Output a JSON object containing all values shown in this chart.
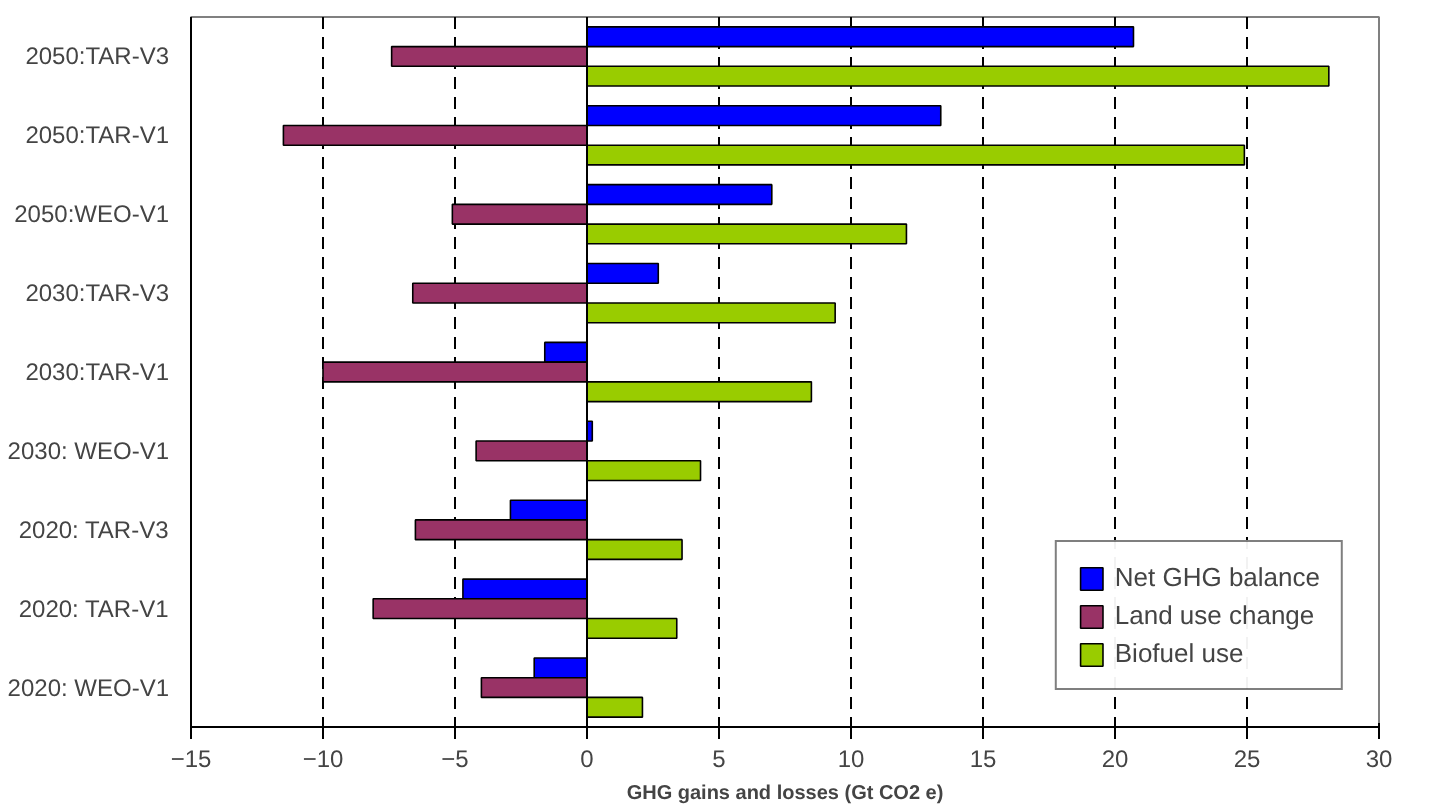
{
  "chart_data": {
    "type": "bar",
    "orientation": "horizontal",
    "xlabel": "GHG gains and losses (Gt CO2 e)",
    "categories": [
      "2050:TAR-V3",
      "2050:TAR-V1",
      "2050:WEO-V1",
      "2030:TAR-V3",
      "2030:TAR-V1",
      "2030: WEO-V1",
      "2020: TAR-V3",
      "2020: TAR-V1",
      "2020: WEO-V1"
    ],
    "series": [
      {
        "name": "Net GHG balance",
        "color": "#0000ff",
        "values": [
          20.7,
          13.4,
          7.0,
          2.7,
          -1.6,
          0.2,
          -2.9,
          -4.7,
          -2.0
        ]
      },
      {
        "name": "Land use change",
        "color": "#993366",
        "values": [
          -7.4,
          -11.5,
          -5.1,
          -6.6,
          -10.0,
          -4.2,
          -6.5,
          -8.1,
          -4.0
        ]
      },
      {
        "name": "Biofuel use",
        "color": "#99cc00",
        "values": [
          28.1,
          24.9,
          12.1,
          9.4,
          8.5,
          4.3,
          3.6,
          3.4,
          2.1
        ]
      }
    ],
    "xlim": [
      -15,
      30
    ],
    "xticks": [
      -15,
      -10,
      -5,
      0,
      5,
      10,
      15,
      20,
      25,
      30
    ],
    "grid": "x",
    "legend": "bottom right"
  }
}
